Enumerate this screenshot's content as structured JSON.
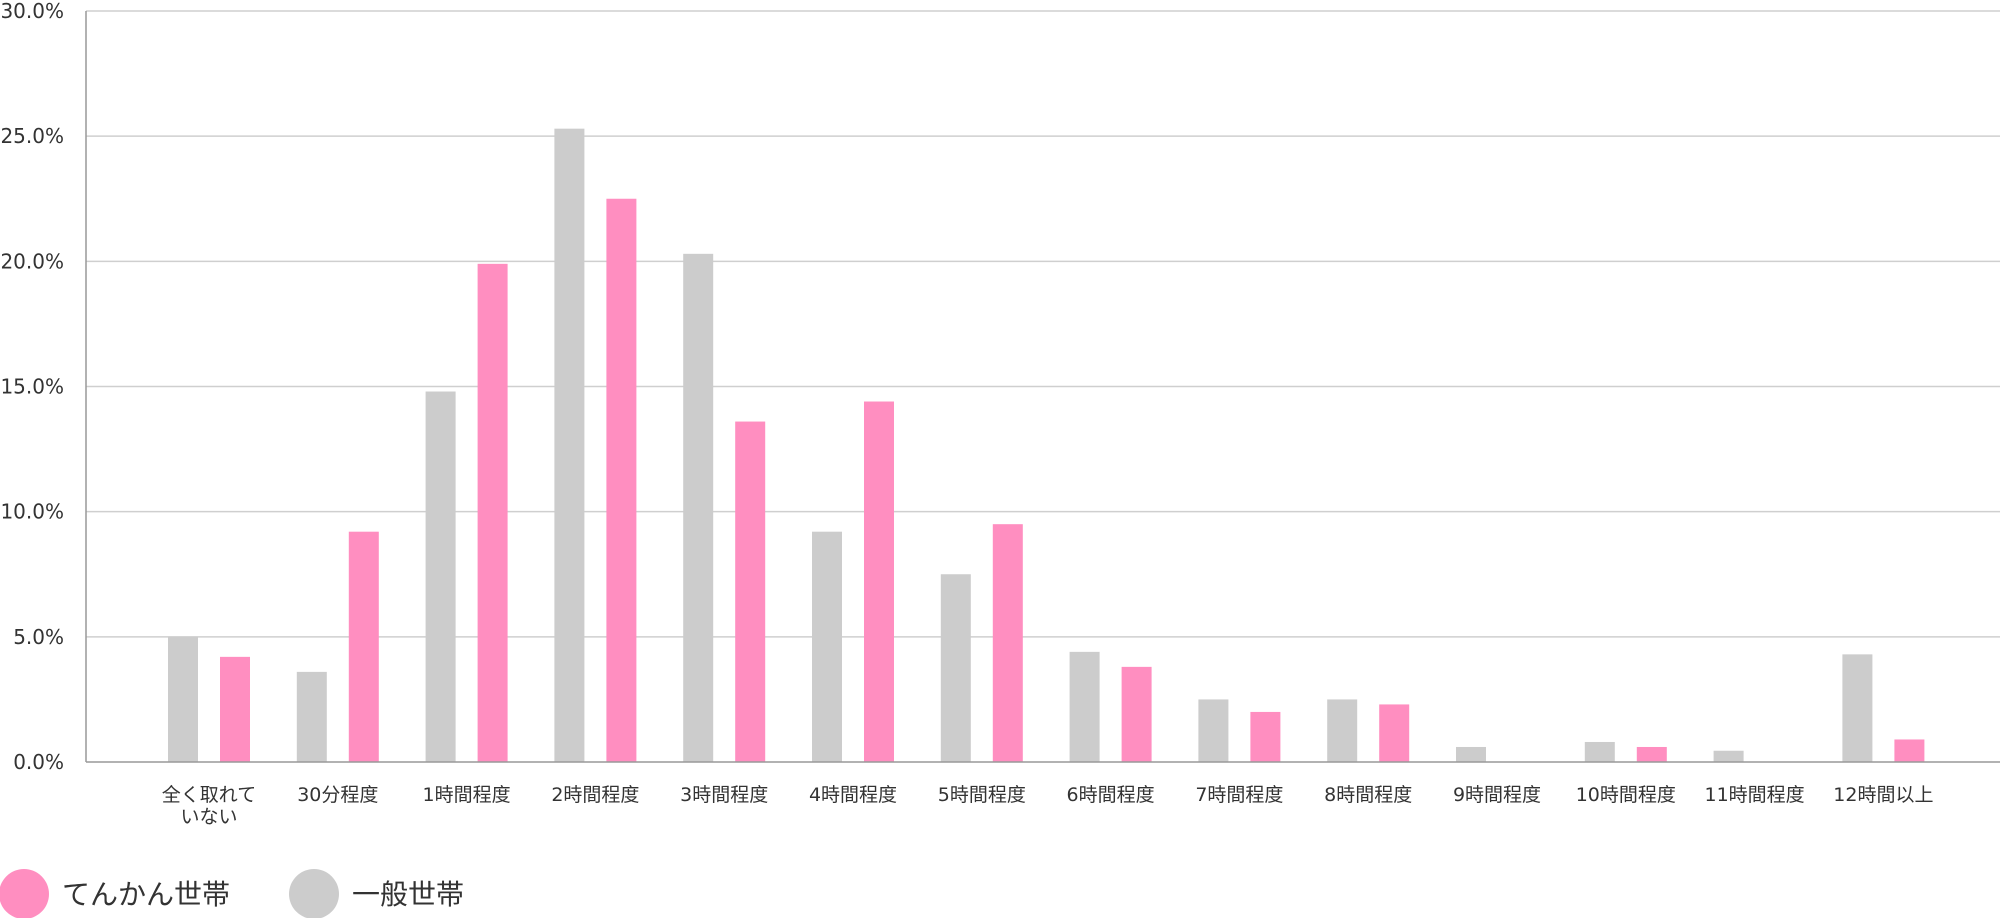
{
  "chart_data": {
    "type": "bar",
    "categories": [
      [
        "全く取れて",
        "いない"
      ],
      [
        "30分程度"
      ],
      [
        "1時間程度"
      ],
      [
        "2時間程度"
      ],
      [
        "3時間程度"
      ],
      [
        "4時間程度"
      ],
      [
        "5時間程度"
      ],
      [
        "6時間程度"
      ],
      [
        "7時間程度"
      ],
      [
        "8時間程度"
      ],
      [
        "9時間程度"
      ],
      [
        "10時間程度"
      ],
      [
        "11時間程度"
      ],
      [
        "12時間以上"
      ]
    ],
    "series": [
      {
        "name": "一般世帯",
        "color": "#cccccc",
        "values": [
          5.0,
          3.6,
          14.8,
          25.3,
          20.3,
          9.2,
          7.5,
          4.4,
          2.5,
          2.5,
          0.6,
          0.8,
          0.45,
          4.3
        ]
      },
      {
        "name": "てんかん世帯",
        "color": "#ff8ec0",
        "values": [
          4.2,
          9.2,
          19.9,
          22.5,
          13.6,
          14.4,
          9.5,
          3.8,
          2.0,
          2.3,
          0.0,
          0.6,
          0.0,
          0.9
        ]
      }
    ],
    "legend_order": [
      "てんかん世帯",
      "一般世帯"
    ],
    "legend_position": "bottom-left",
    "ylim": [
      0,
      30
    ],
    "yticks": [
      "0.0%",
      "5.0%",
      "10.0%",
      "15.0%",
      "20.0%",
      "25.0%",
      "30.0%"
    ],
    "grid": true,
    "title": "",
    "xlabel": "",
    "ylabel": ""
  }
}
